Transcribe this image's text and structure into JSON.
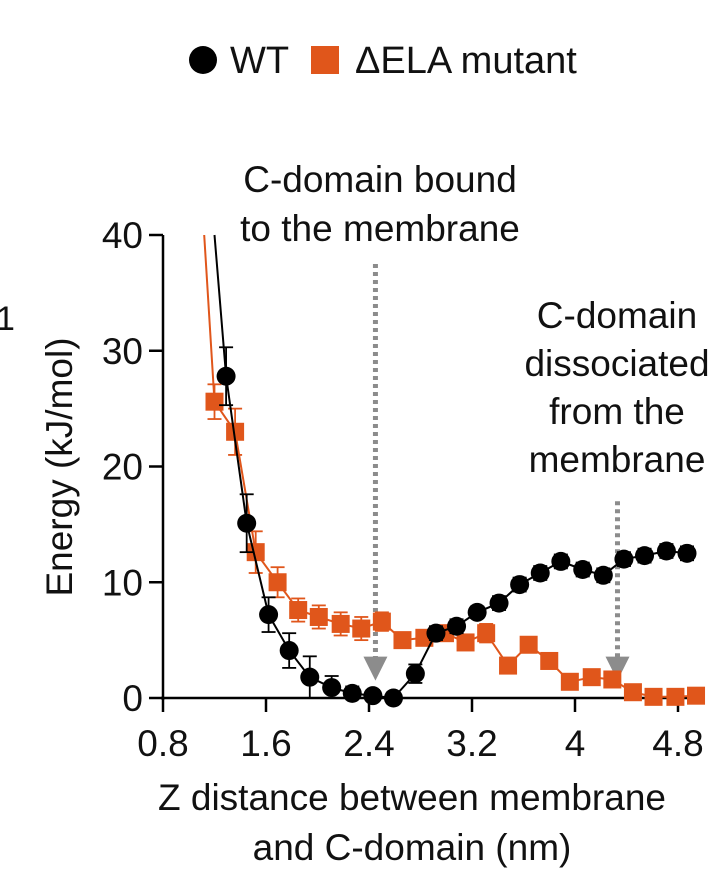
{
  "chart_data": {
    "type": "line",
    "stray_label": "1",
    "xlabel_lines": [
      "Z distance between membrane",
      "and C-domain (nm)"
    ],
    "ylabel": "Energy (kJ/mol)",
    "xlim": [
      0.8,
      4.95
    ],
    "ylim": [
      0,
      40
    ],
    "xticks": [
      0.8,
      1.6,
      2.4,
      3.2,
      4,
      4.8
    ],
    "xtick_labels": [
      "0.8",
      "1.6",
      "2.4",
      "3.2",
      "4",
      "4.8"
    ],
    "yticks": [
      0,
      10,
      20,
      30,
      40
    ],
    "ytick_labels": [
      "0",
      "10",
      "20",
      "30",
      "40"
    ],
    "legend": {
      "position": "top-center",
      "entries": [
        {
          "label": "WT",
          "marker": "circle",
          "color": "#000000"
        },
        {
          "label": "ΔELA mutant",
          "marker": "square",
          "color": "#e0561b"
        }
      ]
    },
    "annotations": [
      {
        "lines": [
          "C-domain bound",
          "to the membrane"
        ],
        "arrow_x": 2.45,
        "arrow_from_y": 37.5,
        "arrow_to_y": 1.5
      },
      {
        "lines": [
          "C-domain",
          "dissociated",
          "from the",
          "membrane"
        ],
        "arrow_x": 4.33,
        "arrow_from_y": 17,
        "arrow_to_y": 1.5
      }
    ],
    "series": [
      {
        "name": "WT",
        "color": "#000000",
        "marker": "circle",
        "line_start": {
          "x": 1.2,
          "y": 40
        },
        "points": [
          {
            "x": 1.29,
            "y": 27.8,
            "err": 2.5
          },
          {
            "x": 1.45,
            "y": 15.1,
            "err": 2.5
          },
          {
            "x": 1.62,
            "y": 7.2,
            "err": 1.5
          },
          {
            "x": 1.78,
            "y": 4.1,
            "err": 1.5
          },
          {
            "x": 1.94,
            "y": 1.8,
            "err": 1.8
          },
          {
            "x": 2.11,
            "y": 0.9,
            "err": 1.0
          },
          {
            "x": 2.27,
            "y": 0.4,
            "err": 0.6
          },
          {
            "x": 2.43,
            "y": 0.2,
            "err": 0.5
          },
          {
            "x": 2.59,
            "y": 0.0,
            "err": 0.5
          },
          {
            "x": 2.76,
            "y": 2.1,
            "err": 0.8
          },
          {
            "x": 2.92,
            "y": 5.6,
            "err": 0.6
          },
          {
            "x": 3.08,
            "y": 6.2,
            "err": 0.6
          },
          {
            "x": 3.24,
            "y": 7.4,
            "err": 0.5
          },
          {
            "x": 3.41,
            "y": 8.2,
            "err": 0.6
          },
          {
            "x": 3.57,
            "y": 9.8,
            "err": 0.6
          },
          {
            "x": 3.73,
            "y": 10.8,
            "err": 0.6
          },
          {
            "x": 3.89,
            "y": 11.8,
            "err": 0.6
          },
          {
            "x": 4.06,
            "y": 11.1,
            "err": 0.6
          },
          {
            "x": 4.22,
            "y": 10.6,
            "err": 0.6
          },
          {
            "x": 4.38,
            "y": 12.0,
            "err": 0.6
          },
          {
            "x": 4.54,
            "y": 12.3,
            "err": 0.6
          },
          {
            "x": 4.71,
            "y": 12.7,
            "err": 0.6
          },
          {
            "x": 4.87,
            "y": 12.5,
            "err": 0.6
          }
        ]
      },
      {
        "name": "ΔELA mutant",
        "color": "#e0561b",
        "marker": "square",
        "line_start": {
          "x": 1.12,
          "y": 40
        },
        "points": [
          {
            "x": 1.2,
            "y": 25.6,
            "err": 1.5
          },
          {
            "x": 1.36,
            "y": 23.0,
            "err": 2.0
          },
          {
            "x": 1.52,
            "y": 12.6,
            "err": 1.8
          },
          {
            "x": 1.69,
            "y": 10.0,
            "err": 1.3
          },
          {
            "x": 1.85,
            "y": 7.6,
            "err": 1.0
          },
          {
            "x": 2.01,
            "y": 7.0,
            "err": 1.0
          },
          {
            "x": 2.18,
            "y": 6.4,
            "err": 1.0
          },
          {
            "x": 2.34,
            "y": 6.0,
            "err": 1.0
          },
          {
            "x": 2.5,
            "y": 6.6,
            "err": 0.8
          },
          {
            "x": 2.66,
            "y": 5.0,
            "err": 0.6
          },
          {
            "x": 2.83,
            "y": 5.2,
            "err": 0.6
          },
          {
            "x": 2.99,
            "y": 5.6,
            "err": 0.6
          },
          {
            "x": 3.15,
            "y": 4.8,
            "err": 0.6
          },
          {
            "x": 3.31,
            "y": 5.6,
            "err": 0.8
          },
          {
            "x": 3.48,
            "y": 2.8,
            "err": 0.6
          },
          {
            "x": 3.64,
            "y": 4.6,
            "err": 0.6
          },
          {
            "x": 3.8,
            "y": 3.2,
            "err": 0.5
          },
          {
            "x": 3.96,
            "y": 1.4,
            "err": 0.5
          },
          {
            "x": 4.13,
            "y": 1.8,
            "err": 0.5
          },
          {
            "x": 4.29,
            "y": 1.6,
            "err": 0.5
          },
          {
            "x": 4.45,
            "y": 0.5,
            "err": 0.4
          },
          {
            "x": 4.61,
            "y": 0.1,
            "err": 0.4
          },
          {
            "x": 4.78,
            "y": 0.1,
            "err": 0.4
          },
          {
            "x": 4.94,
            "y": 0.2,
            "err": 0.4
          }
        ]
      }
    ]
  }
}
